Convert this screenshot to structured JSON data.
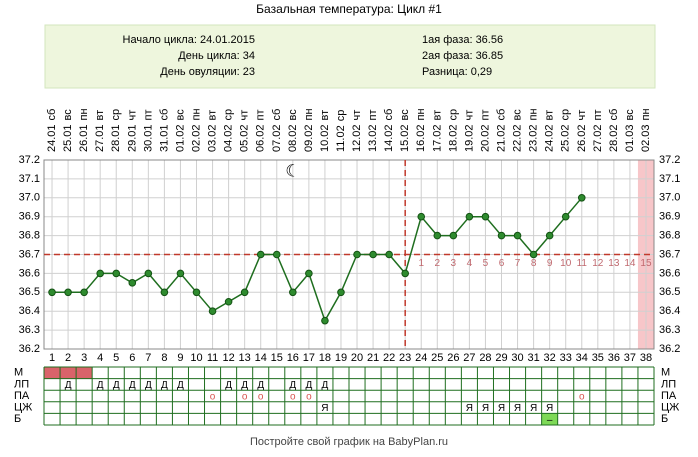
{
  "chart_data": {
    "type": "line",
    "title": "Базальная температура: Цикл #1",
    "info_left": [
      "Начало цикла: 24.01.2015",
      "День цикла: 34",
      "День овуляции: 23"
    ],
    "info_right": [
      "1ая фаза: 36.56",
      "2ая фаза: 36.85",
      "Разница: 0,29"
    ],
    "dates": [
      "24.01",
      "25.01",
      "26.01",
      "27.01",
      "28.01",
      "29.01",
      "30.01",
      "31.01",
      "01.02",
      "02.02",
      "03.02",
      "04.02",
      "05.02",
      "06.02",
      "07.02",
      "08.02",
      "09.02",
      "10.02",
      "11.02",
      "12.02",
      "13.02",
      "14.02",
      "15.02",
      "16.02",
      "17.02",
      "18.02",
      "19.02",
      "20.02",
      "21.02",
      "22.02",
      "23.02",
      "24.02",
      "25.02",
      "26.02",
      "27.02",
      "28.02",
      "01.03",
      "02.03"
    ],
    "weekdays": [
      "сб",
      "вс",
      "пн",
      "вт",
      "ср",
      "чт",
      "пт",
      "сб",
      "вс",
      "пн",
      "вт",
      "ср",
      "чт",
      "пт",
      "сб",
      "вс",
      "пн",
      "вт",
      "ср",
      "чт",
      "пт",
      "сб",
      "вс",
      "пн",
      "вт",
      "ср",
      "чт",
      "пт",
      "сб",
      "вс",
      "пн",
      "вт",
      "ср",
      "чт",
      "пт",
      "сб",
      "вс",
      "пн"
    ],
    "categories": [
      1,
      2,
      3,
      4,
      5,
      6,
      7,
      8,
      9,
      10,
      11,
      12,
      13,
      14,
      15,
      16,
      17,
      18,
      19,
      20,
      21,
      22,
      23,
      24,
      25,
      26,
      27,
      28,
      29,
      30,
      31,
      32,
      33,
      34,
      35,
      36,
      37,
      38
    ],
    "series": [
      {
        "name": "Температура",
        "color": "#1f6e1f",
        "values": [
          36.5,
          36.5,
          36.5,
          36.6,
          36.6,
          36.55,
          36.6,
          36.5,
          36.6,
          36.5,
          36.4,
          36.45,
          36.5,
          36.7,
          36.7,
          36.5,
          36.6,
          36.35,
          36.5,
          36.7,
          36.7,
          36.7,
          36.6,
          36.9,
          36.8,
          36.8,
          36.9,
          36.9,
          36.8,
          36.8,
          36.7,
          36.8,
          36.9,
          37.0,
          null,
          null,
          null,
          null
        ]
      }
    ],
    "ylim": [
      36.2,
      37.2
    ],
    "yticks": [
      36.2,
      36.3,
      36.4,
      36.5,
      36.6,
      36.7,
      36.8,
      36.9,
      {
        "value": 37,
        "label": "37.0"
      },
      37.1,
      37.2
    ],
    "grid": true,
    "coverline": 36.7,
    "ovulation_day": 23,
    "highlight_day": 38,
    "luteal_days": [
      1,
      2,
      3,
      4,
      5,
      6,
      7,
      8,
      9,
      10,
      11,
      12,
      13,
      14,
      15
    ],
    "moon": "☾",
    "table": [
      {
        "label": "М",
        "filled_days": [
          1,
          2,
          3
        ],
        "fill": "#d9636a",
        "cells": []
      },
      {
        "label": "ЛП",
        "cells": [
          null,
          "Д",
          null,
          "Д",
          "Д",
          "Д",
          "Д",
          "Д",
          "Д",
          null,
          null,
          "Д",
          "Д",
          "Д",
          null,
          "Д",
          "Д",
          "Д"
        ]
      },
      {
        "label": "ПА",
        "cells": [
          null,
          null,
          null,
          null,
          null,
          null,
          null,
          null,
          null,
          null,
          "о",
          null,
          "о",
          "о",
          null,
          "о",
          "о",
          null,
          null,
          null,
          null,
          null,
          null,
          null,
          null,
          null,
          null,
          null,
          null,
          null,
          null,
          null,
          null,
          "о"
        ]
      },
      {
        "label": "ЦЖ",
        "cells": [
          null,
          null,
          null,
          null,
          null,
          null,
          null,
          null,
          null,
          null,
          null,
          null,
          null,
          null,
          null,
          null,
          null,
          "Я",
          null,
          null,
          null,
          null,
          null,
          null,
          null,
          null,
          "Я",
          "Я",
          "Я",
          "Я",
          "Я",
          "Я"
        ]
      },
      {
        "label": "Б",
        "filled_days": [
          32
        ],
        "fill": "#7ed957",
        "cells": [
          null,
          null,
          null,
          null,
          null,
          null,
          null,
          null,
          null,
          null,
          null,
          null,
          null,
          null,
          null,
          null,
          null,
          null,
          null,
          null,
          null,
          null,
          null,
          null,
          null,
          null,
          null,
          null,
          null,
          null,
          null,
          "–"
        ]
      }
    ],
    "footer": "Постройте свой график на BabyPlan.ru"
  }
}
